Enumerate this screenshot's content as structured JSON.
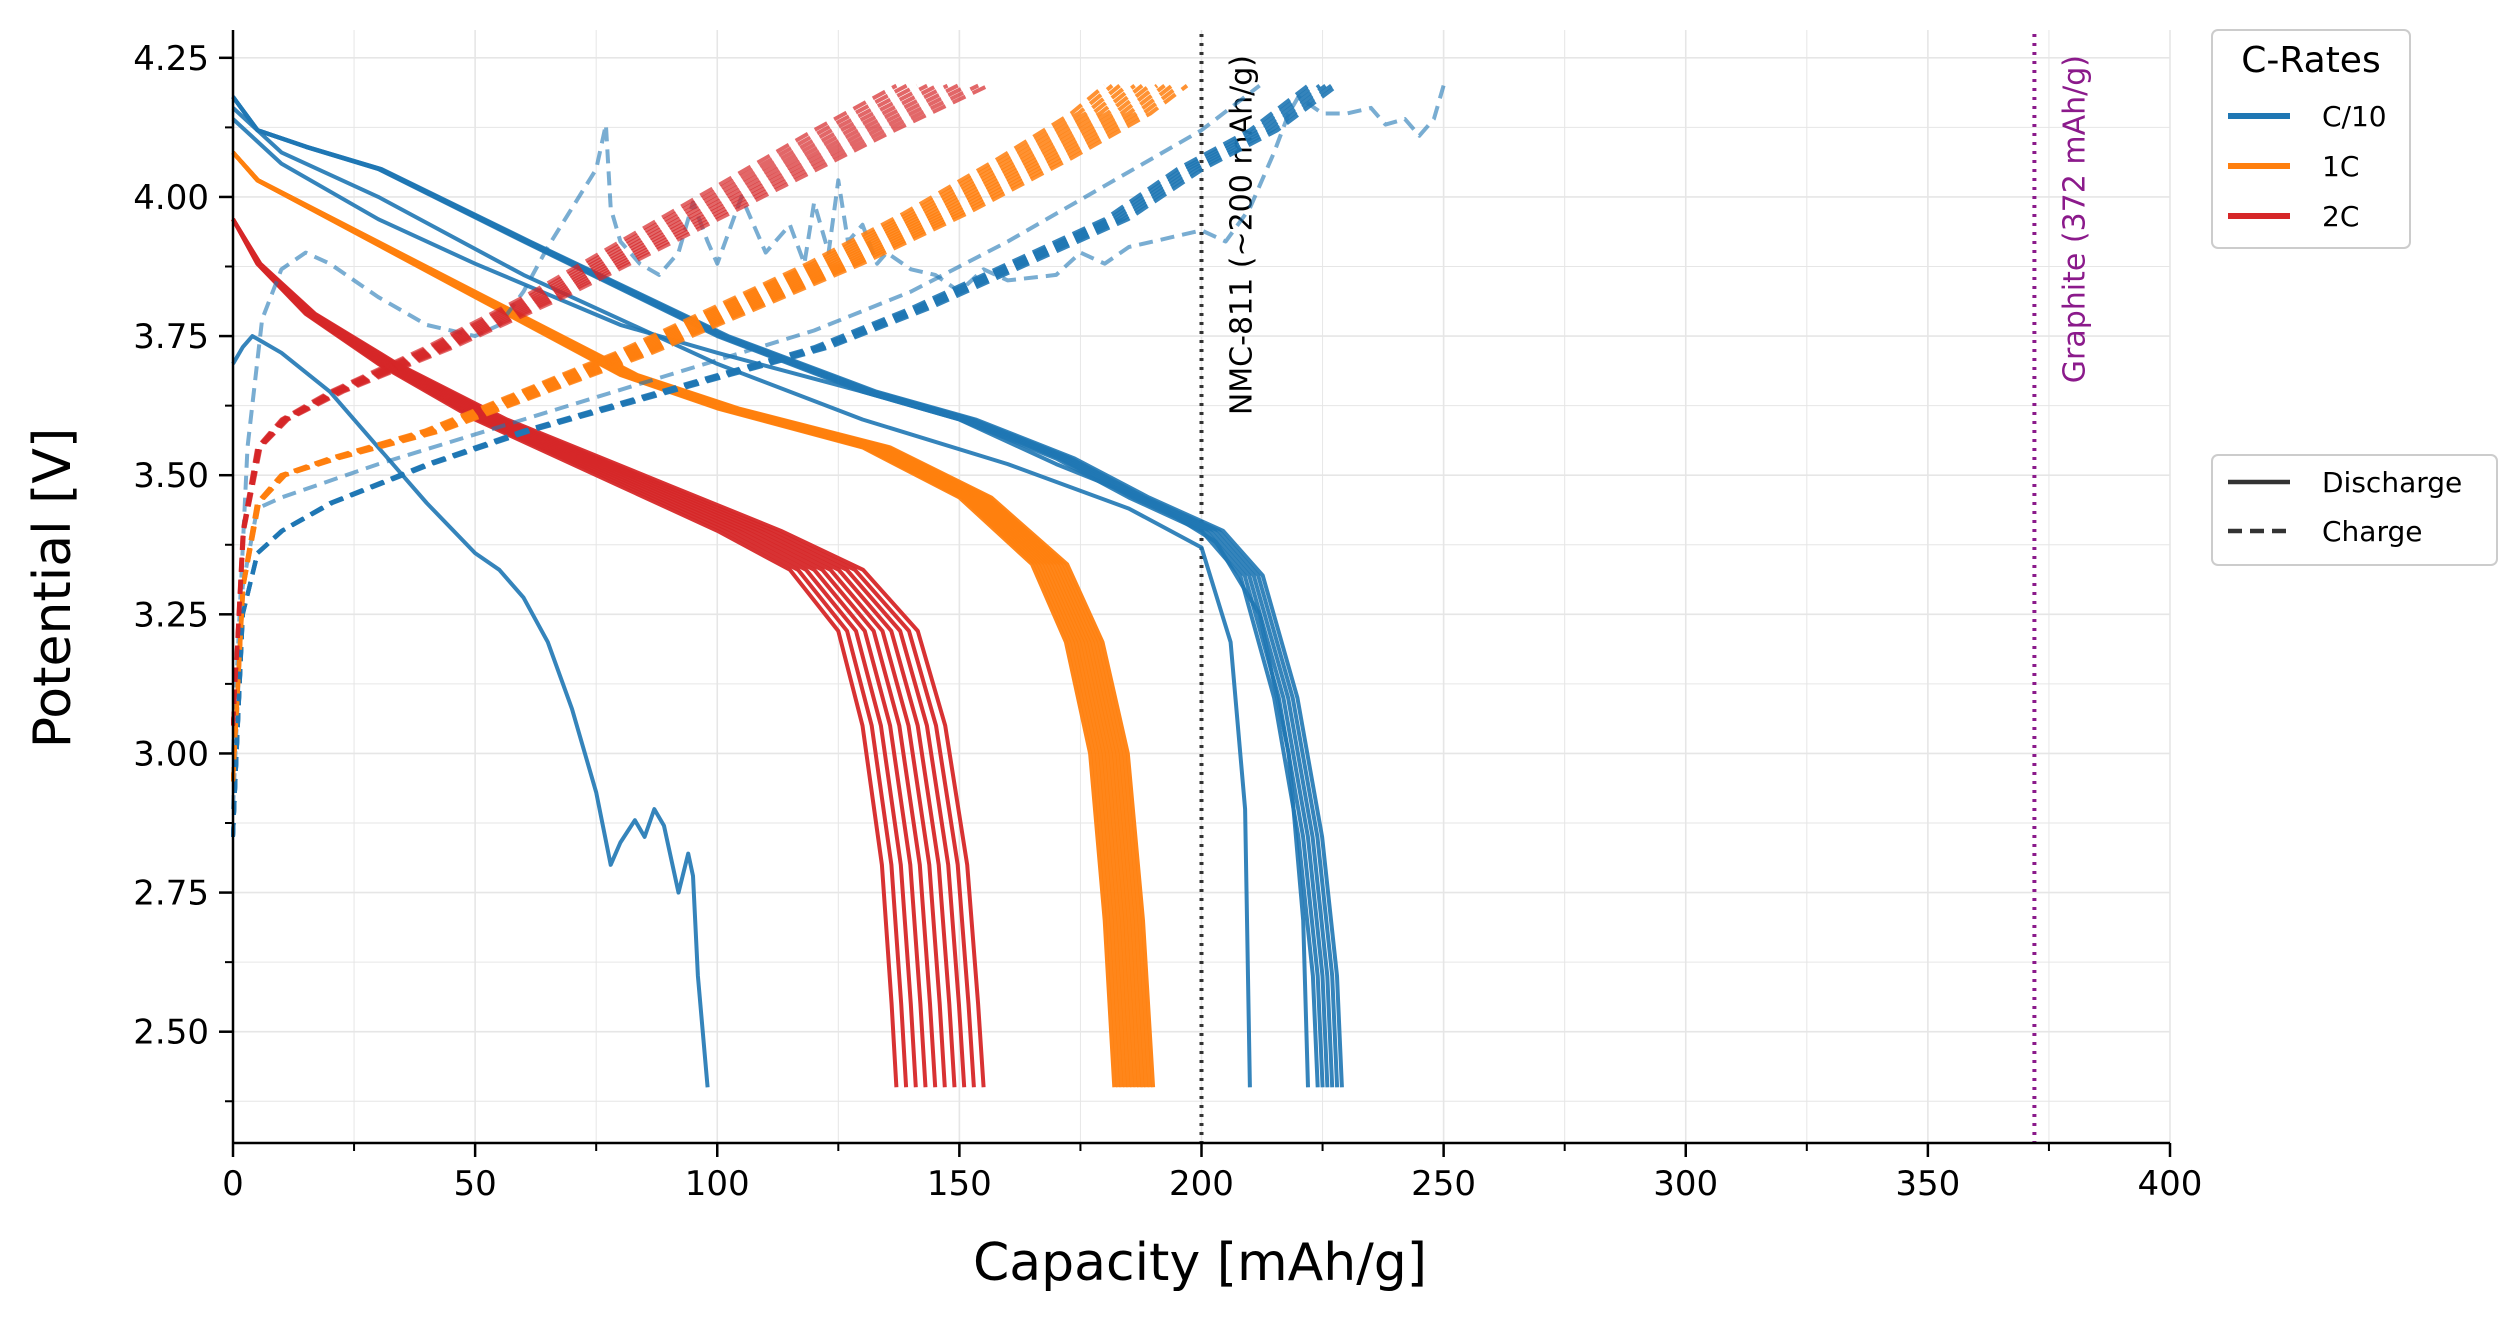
{
  "chart_data": {
    "type": "line",
    "xlabel": "Capacity [mAh/g]",
    "ylabel": "Potential [V]",
    "xlim": [
      0,
      400
    ],
    "ylim": [
      2.3,
      4.3
    ],
    "x_ticks": [
      "0",
      "50",
      "100",
      "150",
      "200",
      "250",
      "300",
      "350",
      "400"
    ],
    "y_ticks": [
      "2.50",
      "2.75",
      "3.00",
      "3.25",
      "3.50",
      "3.75",
      "4.00",
      "4.25"
    ],
    "grid": true,
    "colors": {
      "C/10": "#1f77b4",
      "1C": "#ff7f0e",
      "2C": "#d62728",
      "ref_black": "#333333",
      "ref_purple": "#8b1a8b"
    },
    "reference_lines": [
      {
        "x": 200,
        "label": "NMC-811 (~200 mAh/g)",
        "color": "#333333"
      },
      {
        "x": 372,
        "label": "Graphite (372 mAh/g)",
        "color": "#8b1a8b"
      }
    ],
    "legend_rates": {
      "title": "C-Rates",
      "placement": "upper-right-outside",
      "entries": [
        {
          "label": "C/10",
          "color": "#1f77b4"
        },
        {
          "label": "1C",
          "color": "#ff7f0e"
        },
        {
          "label": "2C",
          "color": "#d62728"
        }
      ]
    },
    "legend_mode": {
      "placement": "center-right-outside",
      "entries": [
        {
          "label": "Discharge",
          "style": "solid"
        },
        {
          "label": "Charge",
          "style": "dashed"
        }
      ]
    },
    "series": [
      {
        "rate": "C/10",
        "mode": "discharge",
        "cycles": 6,
        "capacity_end": [
          224,
          229
        ],
        "opacity": 0.9,
        "points": [
          [
            0,
            4.18
          ],
          [
            5,
            4.12
          ],
          [
            15,
            4.09
          ],
          [
            30,
            4.05
          ],
          [
            60,
            3.92
          ],
          [
            100,
            3.75
          ],
          [
            130,
            3.65
          ],
          [
            150,
            3.6
          ],
          [
            170,
            3.53
          ],
          [
            185,
            3.46
          ],
          [
            200,
            3.4
          ],
          [
            208,
            3.32
          ],
          [
            215,
            3.1
          ],
          [
            220,
            2.85
          ],
          [
            223,
            2.6
          ],
          [
            224,
            2.4
          ]
        ]
      },
      {
        "rate": "C/10",
        "mode": "discharge",
        "cycles": 1,
        "opacity": 0.9,
        "points": [
          [
            0,
            4.16
          ],
          [
            10,
            4.08
          ],
          [
            30,
            4.0
          ],
          [
            60,
            3.86
          ],
          [
            100,
            3.7
          ],
          [
            130,
            3.6
          ],
          [
            160,
            3.52
          ],
          [
            185,
            3.44
          ],
          [
            200,
            3.37
          ],
          [
            206,
            3.2
          ],
          [
            209,
            2.9
          ],
          [
            210,
            2.4
          ]
        ]
      },
      {
        "rate": "C/10",
        "mode": "discharge",
        "cycles": 1,
        "opacity": 0.9,
        "points": [
          [
            0,
            4.14
          ],
          [
            10,
            4.06
          ],
          [
            30,
            3.96
          ],
          [
            50,
            3.88
          ],
          [
            80,
            3.77
          ],
          [
            100,
            3.72
          ],
          [
            130,
            3.65
          ],
          [
            150,
            3.6
          ],
          [
            170,
            3.52
          ],
          [
            190,
            3.45
          ],
          [
            203,
            3.38
          ],
          [
            212,
            3.25
          ],
          [
            218,
            3.0
          ],
          [
            221,
            2.7
          ],
          [
            222,
            2.4
          ]
        ]
      },
      {
        "rate": "C/10",
        "mode": "discharge",
        "cycles": 1,
        "opacity": 0.9,
        "points": [
          [
            0,
            3.7
          ],
          [
            2,
            3.73
          ],
          [
            4,
            3.75
          ],
          [
            6,
            3.74
          ],
          [
            10,
            3.72
          ],
          [
            20,
            3.65
          ],
          [
            30,
            3.55
          ],
          [
            40,
            3.45
          ],
          [
            50,
            3.36
          ],
          [
            55,
            3.33
          ],
          [
            60,
            3.28
          ],
          [
            65,
            3.2
          ],
          [
            70,
            3.08
          ],
          [
            75,
            2.93
          ],
          [
            78,
            2.8
          ],
          [
            80,
            2.84
          ],
          [
            83,
            2.88
          ],
          [
            85,
            2.85
          ],
          [
            87,
            2.9
          ],
          [
            89,
            2.87
          ],
          [
            92,
            2.75
          ],
          [
            94,
            2.82
          ],
          [
            95,
            2.78
          ],
          [
            96,
            2.6
          ],
          [
            98,
            2.4
          ]
        ]
      },
      {
        "rate": "1C",
        "mode": "discharge",
        "cycles": 12,
        "capacity_end": [
          182,
          190
        ],
        "opacity": 0.95,
        "points": [
          [
            0,
            4.08
          ],
          [
            5,
            4.03
          ],
          [
            20,
            3.96
          ],
          [
            50,
            3.82
          ],
          [
            80,
            3.68
          ],
          [
            100,
            3.62
          ],
          [
            130,
            3.55
          ],
          [
            150,
            3.46
          ],
          [
            165,
            3.34
          ],
          [
            172,
            3.2
          ],
          [
            177,
            3.0
          ],
          [
            180,
            2.7
          ],
          [
            182,
            2.4
          ]
        ]
      },
      {
        "rate": "2C",
        "mode": "discharge",
        "cycles": 10,
        "capacity_end": [
          137,
          155
        ],
        "opacity": 0.95,
        "points": [
          [
            0,
            3.96
          ],
          [
            5,
            3.88
          ],
          [
            15,
            3.79
          ],
          [
            30,
            3.7
          ],
          [
            50,
            3.6
          ],
          [
            80,
            3.48
          ],
          [
            100,
            3.4
          ],
          [
            115,
            3.33
          ],
          [
            125,
            3.22
          ],
          [
            130,
            3.05
          ],
          [
            134,
            2.8
          ],
          [
            136,
            2.55
          ],
          [
            137,
            2.4
          ]
        ]
      },
      {
        "rate": "C/10",
        "mode": "charge",
        "cycles": 6,
        "capacity_end": [
          222,
          228
        ],
        "opacity": 0.9,
        "points": [
          [
            0,
            2.85
          ],
          [
            2,
            3.25
          ],
          [
            5,
            3.36
          ],
          [
            10,
            3.4
          ],
          [
            20,
            3.45
          ],
          [
            40,
            3.52
          ],
          [
            60,
            3.58
          ],
          [
            80,
            3.63
          ],
          [
            100,
            3.68
          ],
          [
            120,
            3.73
          ],
          [
            140,
            3.8
          ],
          [
            160,
            3.88
          ],
          [
            180,
            3.96
          ],
          [
            195,
            4.05
          ],
          [
            210,
            4.12
          ],
          [
            222,
            4.2
          ]
        ]
      },
      {
        "rate": "C/10",
        "mode": "charge",
        "cycles": 1,
        "opacity": 0.6,
        "points": [
          [
            0,
            2.9
          ],
          [
            2,
            3.3
          ],
          [
            5,
            3.44
          ],
          [
            10,
            3.46
          ],
          [
            30,
            3.52
          ],
          [
            60,
            3.6
          ],
          [
            90,
            3.68
          ],
          [
            120,
            3.76
          ],
          [
            140,
            3.83
          ],
          [
            160,
            3.92
          ],
          [
            180,
            4.02
          ],
          [
            200,
            4.12
          ],
          [
            212,
            4.2
          ]
        ]
      },
      {
        "rate": "C/10",
        "mode": "charge",
        "cycles": 1,
        "opacity": 0.6,
        "points": [
          [
            0,
            3.0
          ],
          [
            3,
            3.55
          ],
          [
            6,
            3.78
          ],
          [
            10,
            3.87
          ],
          [
            15,
            3.9
          ],
          [
            20,
            3.88
          ],
          [
            30,
            3.82
          ],
          [
            40,
            3.77
          ],
          [
            50,
            3.75
          ],
          [
            55,
            3.77
          ],
          [
            60,
            3.83
          ],
          [
            65,
            3.91
          ],
          [
            70,
            3.98
          ],
          [
            75,
            4.05
          ],
          [
            77,
            4.13
          ],
          [
            78,
            3.98
          ],
          [
            80,
            3.92
          ],
          [
            84,
            3.88
          ],
          [
            88,
            3.86
          ],
          [
            92,
            3.9
          ],
          [
            95,
            3.99
          ],
          [
            98,
            3.92
          ],
          [
            100,
            3.88
          ],
          [
            105,
            4.0
          ],
          [
            110,
            3.9
          ],
          [
            115,
            3.95
          ],
          [
            118,
            3.88
          ],
          [
            120,
            3.99
          ],
          [
            123,
            3.9
          ],
          [
            125,
            4.03
          ],
          [
            127,
            3.92
          ],
          [
            130,
            3.95
          ],
          [
            133,
            3.88
          ],
          [
            135,
            3.9
          ],
          [
            140,
            3.87
          ],
          [
            145,
            3.86
          ],
          [
            150,
            3.83
          ],
          [
            155,
            3.87
          ],
          [
            160,
            3.85
          ],
          [
            170,
            3.86
          ],
          [
            175,
            3.9
          ],
          [
            180,
            3.88
          ],
          [
            185,
            3.91
          ],
          [
            190,
            3.92
          ],
          [
            200,
            3.94
          ],
          [
            205,
            3.92
          ],
          [
            210,
            3.98
          ],
          [
            215,
            4.08
          ],
          [
            218,
            4.15
          ],
          [
            220,
            4.18
          ],
          [
            225,
            4.15
          ],
          [
            230,
            4.15
          ],
          [
            235,
            4.16
          ],
          [
            238,
            4.13
          ],
          [
            242,
            4.14
          ],
          [
            245,
            4.11
          ],
          [
            248,
            4.14
          ],
          [
            250,
            4.2
          ]
        ]
      },
      {
        "rate": "1C",
        "mode": "charge",
        "cycles": 12,
        "capacity_end": [
          180,
          197
        ],
        "opacity": 0.85,
        "points": [
          [
            0,
            2.95
          ],
          [
            2,
            3.3
          ],
          [
            5,
            3.45
          ],
          [
            10,
            3.5
          ],
          [
            20,
            3.53
          ],
          [
            40,
            3.58
          ],
          [
            60,
            3.65
          ],
          [
            80,
            3.72
          ],
          [
            100,
            3.8
          ],
          [
            120,
            3.88
          ],
          [
            140,
            3.97
          ],
          [
            160,
            4.07
          ],
          [
            175,
            4.15
          ],
          [
            182,
            4.2
          ]
        ]
      },
      {
        "rate": "2C",
        "mode": "charge",
        "cycles": 10,
        "capacity_end": [
          137,
          156
        ],
        "opacity": 0.7,
        "points": [
          [
            0,
            3.05
          ],
          [
            2,
            3.4
          ],
          [
            5,
            3.55
          ],
          [
            10,
            3.6
          ],
          [
            20,
            3.65
          ],
          [
            40,
            3.73
          ],
          [
            60,
            3.82
          ],
          [
            80,
            3.92
          ],
          [
            100,
            4.02
          ],
          [
            120,
            4.12
          ],
          [
            137,
            4.2
          ]
        ]
      }
    ]
  }
}
